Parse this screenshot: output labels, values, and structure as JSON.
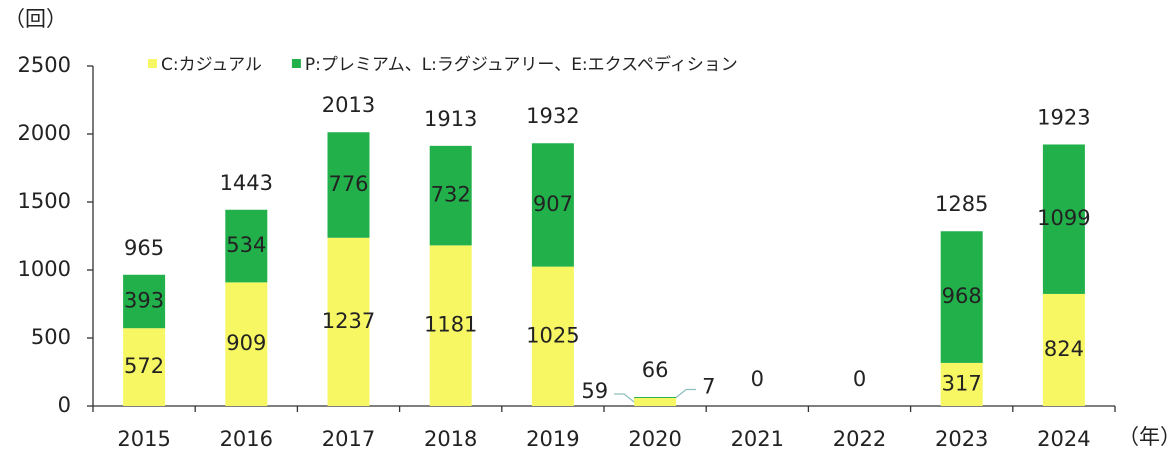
{
  "chart_data": {
    "type": "stacked_bar",
    "y_axis_label": "（回）",
    "x_axis_label": "（年）",
    "categories": [
      "2015",
      "2016",
      "2017",
      "2018",
      "2019",
      "2020",
      "2021",
      "2022",
      "2023",
      "2024"
    ],
    "series": [
      {
        "name": "C:カジュアル",
        "color": "#f7f764",
        "values": [
          572,
          909,
          1237,
          1181,
          1025,
          59,
          0,
          0,
          317,
          824
        ]
      },
      {
        "name": "P:プレミアム、L:ラグジュアリー、E:エクスペディション",
        "color": "#22b04b",
        "values": [
          393,
          534,
          776,
          732,
          907,
          7,
          0,
          0,
          968,
          1099
        ]
      }
    ],
    "totals": [
      965,
      1443,
      2013,
      1913,
      1932,
      66,
      0,
      0,
      1285,
      1923
    ],
    "ylim": [
      0,
      2500
    ],
    "yticks": [
      0,
      500,
      1000,
      1500,
      2000,
      2500
    ],
    "grid": false,
    "legend": "top"
  }
}
